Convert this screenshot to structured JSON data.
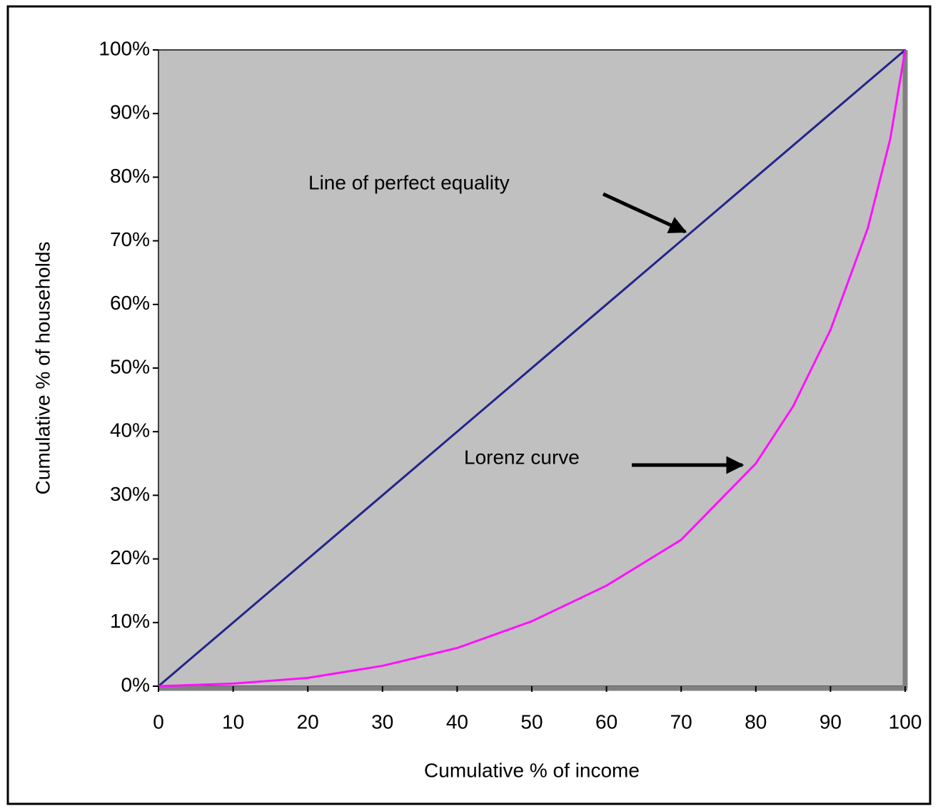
{
  "chart_data": {
    "type": "line",
    "x_label": "Cumulative % of income",
    "y_label": "Cumulative % of households",
    "xlim": [
      0,
      100
    ],
    "ylim": [
      0,
      100
    ],
    "xticks": [
      0,
      10,
      20,
      30,
      40,
      50,
      60,
      70,
      80,
      90,
      100
    ],
    "yticks": [
      {
        "value": 0,
        "label": "0%"
      },
      {
        "value": 10,
        "label": "10%"
      },
      {
        "value": 20,
        "label": "20%"
      },
      {
        "value": 30,
        "label": "30%"
      },
      {
        "value": 40,
        "label": "40%"
      },
      {
        "value": 50,
        "label": "50%"
      },
      {
        "value": 60,
        "label": "60%"
      },
      {
        "value": 70,
        "label": "70%"
      },
      {
        "value": 80,
        "label": "80%"
      },
      {
        "value": 90,
        "label": "90%"
      },
      {
        "value": 100,
        "label": "100%"
      }
    ],
    "series": [
      {
        "color": "#24248a",
        "x": [
          0,
          100
        ],
        "values": [
          0,
          100
        ]
      },
      {
        "color": "#ff10ff",
        "x": [
          0,
          10,
          20,
          30,
          40,
          50,
          60,
          70,
          80,
          85,
          90,
          95,
          98,
          100
        ],
        "values": [
          0,
          0.4,
          1.3,
          3.2,
          6,
          10.2,
          15.8,
          23,
          35,
          44,
          56,
          72,
          86,
          100
        ]
      }
    ],
    "annotations": [
      {
        "text": "Line of perfect equality"
      },
      {
        "text": "Lorenz curve"
      }
    ]
  }
}
